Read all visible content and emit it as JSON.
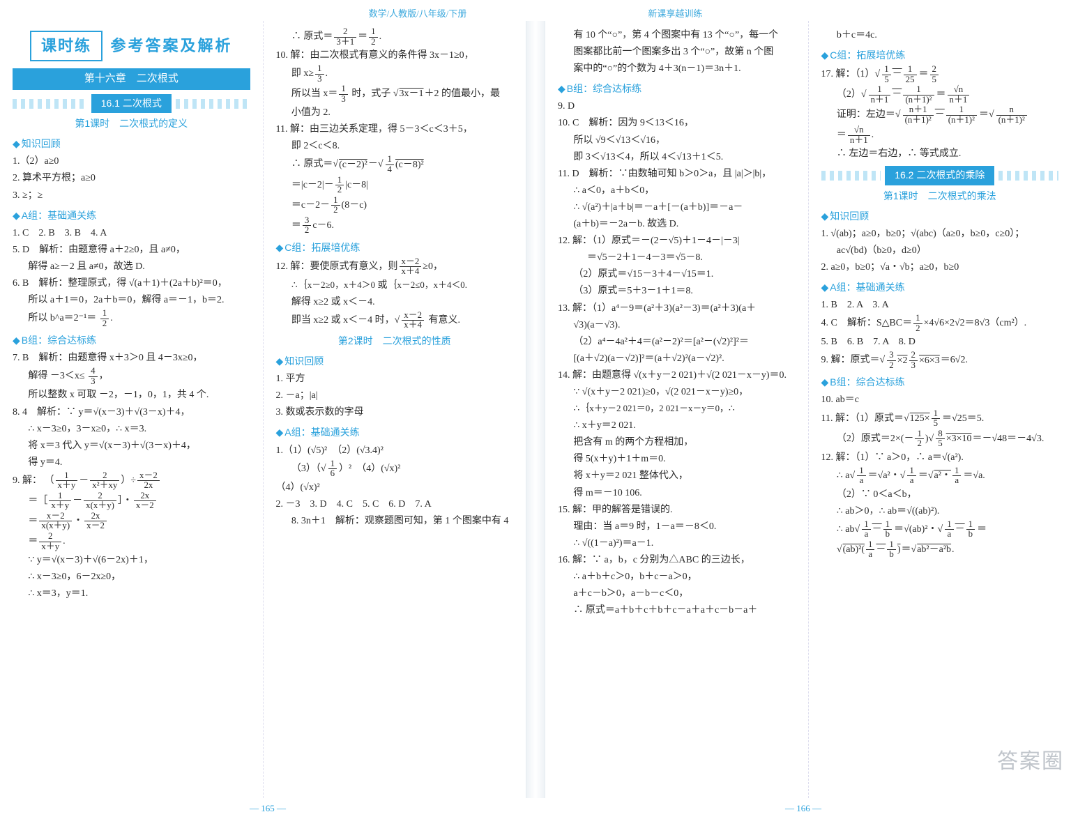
{
  "header": {
    "left": "数学/人教版/八年级/下册",
    "right": "新课享越训练"
  },
  "watermark": "答案圈",
  "pageNumbers": {
    "left": "— 165 —",
    "right": "— 166 —"
  },
  "titleBox": "课时练",
  "titleAfter": "参考答案及解析",
  "chapterBar": "第十六章　二次根式",
  "section_16_1": "16.1 二次根式",
  "lesson_16_1_1": "第1课时　二次根式的定义",
  "section_16_2": "16.2 二次根式的乘除",
  "lesson_16_2_1": "第1课时　二次根式的乘法",
  "lesson_16_1_2": "第2课时　二次根式的性质",
  "groups": {
    "zshg": "知识回顾",
    "A": "A组：基础通关练",
    "B": "B组：综合达标练",
    "C": "C组：拓展培优练"
  },
  "col1": {
    "zshg": [
      "1.（2）a≥0",
      "2. 算术平方根；a≥0",
      "3. ≥；≥"
    ],
    "A": [
      "1. C　2. B　3. B　4. A",
      "5. D　解析：由题意得 a＋2≥0，且 a≠0，",
      "解得 a≥－2 且 a≠0，故选 D.",
      "6. B　解析：整理原式，得 √(a＋1)＋(2a＋b)²＝0，",
      "所以 a＋1＝0，2a＋b＝0，解得 a＝－1，b＝2.",
      "所以 b^a＝2⁻¹＝"
    ],
    "B": [
      "7. B　解析：由题意得 x＋3＞0 且 4－3x≥0，",
      "解得 －3＜x≤",
      "所以整数 x 可取 －2，－1，0，1，共 4 个.",
      "8. 4　解析：∵ y＝√(x－3)＋√(3－x)＋4，",
      "∴ x－3≥0，3－x≥0，∴ x＝3.",
      "将 x＝3 代入 y＝√(x－3)＋√(3－x)＋4，",
      "得 y＝4.",
      "9. 解：",
      "＝",
      "＝",
      "＝",
      "∵ y＝√(x－3)＋√(6－2x)＋1，",
      "∴ x－3≥0，6－2x≥0，",
      "∴ x＝3，y＝1."
    ]
  },
  "col2": {
    "pre": [
      "∴ 原式＝",
      "10. 解：由二次根式有意义的条件得 3x－1≥0，",
      "即 x≥",
      "所以当 x＝　 时，式子 √(3x－1)＋2 的值最小，最",
      "小值为 2.",
      "11. 解：由三边关系定理，得 5－3＜c＜3＋5，",
      "即 2＜c＜8.",
      "∴ 原式＝√((c－2)²)－√(　(c－8)²)",
      "＝|c－2|－　|c－8|",
      "＝c－2－　(8－c)",
      "＝　c－6."
    ],
    "C": [
      "12. 解：要使原式有意义，则",
      "∴",
      "解得 x≥2 或 x＜－4.",
      "即当 x≥2 或 x＜－4 时，√(　) 有意义."
    ],
    "lesson2_zshg": [
      "1. 平方",
      "2. －a；|a|",
      "3. 数或表示数的字母"
    ],
    "lesson2_A": [
      "1.（1）(√5)²　（2）(√3.4)²",
      "（3）",
      "（4）(√x)²",
      "2. －3　3. D　4. C　5. C　6. D　7. A",
      "8. 3n＋1　解析：观察题图可知，第 1 个图案中有 4",
      "个“○”，第 2 个图案中有 7 个“○”，第 3 个图案中"
    ]
  },
  "col3": {
    "top": [
      "有 10 个“○”，第 4 个图案中有 13 个“○”，每一个",
      "图案都比前一个图案多出 3 个“○”，故第 n 个图",
      "案中的“○”的个数为 4＋3(n－1)＝3n＋1."
    ],
    "B": [
      "9. D",
      "10. C　解析：因为 9＜13＜16，",
      "所以 √9＜√13＜√16，",
      "即 3＜√13＜4，所以 4＜√13＋1＜5.",
      "11. D　解析：∵由数轴可知 b＞0＞a，且 |a|＞|b|，",
      "∴ a＜0，a＋b＜0，",
      "∴ √(a²)＋|a＋b|＝－a＋[－(a＋b)]＝－a－",
      "(a＋b)＝－2a－b. 故选 D.",
      "12. 解：（1）原式＝－(2－√5)＋1－4－|－3|",
      "＝√5－2＋1－4－3＝√5－8.",
      "（2）原式＝√15－3＋4－√15＝1.",
      "（3）原式＝5＋3－1＋1＝8.",
      "13. 解：（1）a⁴－9＝(a²＋3)(a²－3)＝(a²＋3)(a＋",
      "√3)(a－√3).",
      "（2）a⁴－4a²＋4＝(a²－2)²＝[a²－(√2)²]²＝",
      "[(a＋√2)(a－√2)]²＝(a＋√2)²(a－√2)².",
      "14. 解：由题意得 √(x＋y－2 021)＋√(2 021－x－y)＝0.",
      "∵ √(x＋y－2 021)≥0，√(2 021－x－y)≥0，",
      "∴",
      "∴ x＋y＝2 021.",
      "把含有 m 的两个方程相加，",
      "得 5(x＋y)＋1＋m＝0.",
      "将 x＋y＝2 021 整体代入，",
      "得 m＝－10 106.",
      "15. 解：甲的解答是错误的.",
      "理由：当 a＝9 时，1－a＝－8＜0.",
      "∴ √((1－a)²)＝a－1.",
      "16. 解：∵ a，b，c 分别为△ABC 的三边长，",
      "∴ a＋b＋c＞0，b＋c－a＞0，",
      "a＋c－b＞0，a－b－c＜0，",
      "∴ 原式＝a＋b＋c＋b＋c－a＋a＋c－b－a＋"
    ]
  },
  "col4": {
    "top": [
      "b＋c＝4c."
    ],
    "C": [
      "17. 解：（1）",
      "（2）",
      "证明：左边＝",
      "＝",
      "∴ 左边＝右边，∴ 等式成立."
    ],
    "zshg": [
      "1. √(ab)；a≥0，b≥0；√(abc)（a≥0，b≥0，c≥0）；",
      "ac√(bd)（b≥0，d≥0）",
      "2. a≥0，b≥0；√a・√b；a≥0，b≥0"
    ],
    "A": [
      "1. B　2. A　3. A",
      "4. C　解析：S△BC＝　×4√6×2√2＝8√3（cm²）.",
      "5. B　6. B　7. A　8. D",
      "9. 解：原式＝√(　×2　×6×3)＝6√2."
    ],
    "B": [
      "10. ab＝c",
      "11. 解：（1）原式＝√(125×　)＝√25＝5.",
      "（2）原式＝2×(－　)√(　×3×10)＝－√48＝－4√3.",
      "12. 解：（1）∵ a＞0，∴ a＝√(a²).",
      "∴ a√(　)＝√(a²)・√(　)＝√(a²・　)＝√a.",
      "（2）∵ 0＜a＜b，",
      "∴ ab＞0，∴ ab＝√((ab)²).",
      "∴ ab√(　－　)＝√((ab)²)・√(　－　)＝",
      "√((ab)²(　－　))＝√(ab²－a²b)."
    ]
  }
}
